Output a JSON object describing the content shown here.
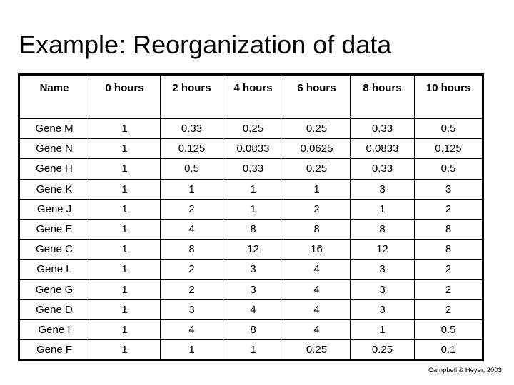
{
  "slide": {
    "title": "Example: Reorganization of data",
    "citation": "Campbell & Heyer, 2003"
  },
  "chart_data": {
    "type": "table",
    "title": "Example: Reorganization of data",
    "columns": [
      "Name",
      "0 hours",
      "2 hours",
      "4 hours",
      "6 hours",
      "8 hours",
      "10 hours"
    ],
    "rows": [
      [
        "Gene M",
        "1",
        "0.33",
        "0.25",
        "0.25",
        "0.33",
        "0.5"
      ],
      [
        "Gene N",
        "1",
        "0.125",
        "0.0833",
        "0.0625",
        "0.0833",
        "0.125"
      ],
      [
        "Gene H",
        "1",
        "0.5",
        "0.33",
        "0.25",
        "0.33",
        "0.5"
      ],
      [
        "Gene K",
        "1",
        "1",
        "1",
        "1",
        "3",
        "3"
      ],
      [
        "Gene J",
        "1",
        "2",
        "1",
        "2",
        "1",
        "2"
      ],
      [
        "Gene E",
        "1",
        "4",
        "8",
        "8",
        "8",
        "8"
      ],
      [
        "Gene C",
        "1",
        "8",
        "12",
        "16",
        "12",
        "8"
      ],
      [
        "Gene L",
        "1",
        "2",
        "3",
        "4",
        "3",
        "2"
      ],
      [
        "Gene G",
        "1",
        "2",
        "3",
        "4",
        "3",
        "2"
      ],
      [
        "Gene D",
        "1",
        "3",
        "4",
        "4",
        "3",
        "2"
      ],
      [
        "Gene I",
        "1",
        "4",
        "8",
        "4",
        "1",
        "0.5"
      ],
      [
        "Gene F",
        "1",
        "1",
        "1",
        "0.25",
        "0.25",
        "0.1"
      ]
    ]
  }
}
